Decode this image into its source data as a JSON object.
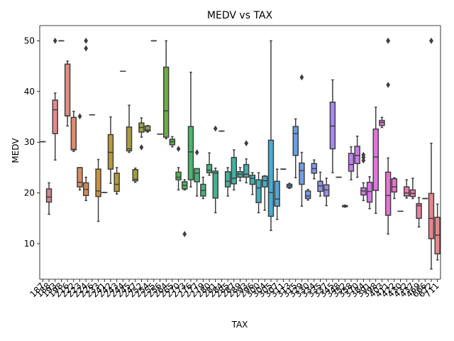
{
  "chart_data": {
    "type": "box",
    "title": "MEDV vs TAX",
    "xlabel": "TAX",
    "ylabel": "MEDV",
    "ylim": [
      3,
      53
    ],
    "y_ticks": [
      10,
      20,
      30,
      40,
      50
    ],
    "grid": false,
    "legend": "none",
    "box_edge_color": "#3f3f3f",
    "boxes": [
      {
        "tax": "187",
        "color": "#c98b8b",
        "q1": 30.1,
        "median": 30.1,
        "q3": 30.1,
        "whisker_low": 30.1,
        "whisker_high": 30.1,
        "fliers": []
      },
      {
        "tax": "188",
        "color": "#c8898f",
        "q1": 18.2,
        "median": 19.2,
        "q3": 20.8,
        "whisker_low": 15.8,
        "whisker_high": 22.0,
        "fliers": []
      },
      {
        "tax": "193",
        "color": "#e8878c",
        "q1": 31.7,
        "median": 36.4,
        "q3": 38.3,
        "whisker_low": 26.5,
        "whisker_high": 39.7,
        "fliers": [
          50.0
        ]
      },
      {
        "tax": "198",
        "color": "#de8a8a",
        "q1": 50.0,
        "median": 50.0,
        "q3": 50.0,
        "whisker_low": 50.0,
        "whisker_high": 50.0,
        "fliers": []
      },
      {
        "tax": "216",
        "color": "#e48a7f",
        "q1": 35.2,
        "median": 35.2,
        "q3": 45.4,
        "whisker_low": 33.2,
        "whisker_high": 46.0,
        "fliers": []
      },
      {
        "tax": "222",
        "color": "#e08a6e",
        "q1": 28.5,
        "median": 28.6,
        "q3": 34.9,
        "whisker_low": 28.2,
        "whisker_high": 36.1,
        "fliers": []
      },
      {
        "tax": "223",
        "color": "#dc8c5e",
        "q1": 21.2,
        "median": 22.1,
        "q3": 25.0,
        "whisker_low": 20.6,
        "whisker_high": 25.0,
        "fliers": [
          35.1
        ]
      },
      {
        "tax": "224",
        "color": "#d68c52",
        "q1": 19.5,
        "median": 20.7,
        "q3": 22.0,
        "whisker_low": 18.5,
        "whisker_high": 23.1,
        "fliers": [
          48.5,
          50.0
        ]
      },
      {
        "tax": "226",
        "color": "#cf8f4b",
        "q1": 35.4,
        "median": 35.4,
        "q3": 35.4,
        "whisker_low": 35.4,
        "whisker_high": 35.4,
        "fliers": []
      },
      {
        "tax": "233",
        "color": "#c89346",
        "q1": 19.3,
        "median": 20.4,
        "q3": 24.7,
        "whisker_low": 14.4,
        "whisker_high": 26.6,
        "fliers": []
      },
      {
        "tax": "241",
        "color": "#c39543",
        "q1": 20.1,
        "median": 20.1,
        "q3": 20.1,
        "whisker_low": 20.1,
        "whisker_high": 20.1,
        "fliers": []
      },
      {
        "tax": "242",
        "color": "#bb9740",
        "q1": 24.7,
        "median": 28.0,
        "q3": 31.5,
        "whisker_low": 21.9,
        "whisker_high": 35.0,
        "fliers": []
      },
      {
        "tax": "243",
        "color": "#b49a3f",
        "q1": 20.3,
        "median": 21.7,
        "q3": 23.9,
        "whisker_low": 19.8,
        "whisker_high": 25.0,
        "fliers": []
      },
      {
        "tax": "244",
        "color": "#ae9c3e",
        "q1": 44.0,
        "median": 44.0,
        "q3": 44.0,
        "whisker_low": 44.0,
        "whisker_high": 44.0,
        "fliers": []
      },
      {
        "tax": "245",
        "color": "#a89d3c",
        "q1": 28.3,
        "median": 28.7,
        "q3": 33.0,
        "whisker_low": 28.0,
        "whisker_high": 37.3,
        "fliers": []
      },
      {
        "tax": "247",
        "color": "#a29f3b",
        "q1": 22.4,
        "median": 22.7,
        "q3": 24.6,
        "whisker_low": 22.1,
        "whisker_high": 24.9,
        "fliers": []
      },
      {
        "tax": "252",
        "color": "#9ca23b",
        "q1": 32.0,
        "median": 32.9,
        "q3": 33.8,
        "whisker_low": 31.0,
        "whisker_high": 34.8,
        "fliers": [
          29.0
        ]
      },
      {
        "tax": "254",
        "color": "#93a53b",
        "q1": 32.2,
        "median": 32.4,
        "q3": 33.2,
        "whisker_low": 32.0,
        "whisker_high": 33.3,
        "fliers": []
      },
      {
        "tax": "255",
        "color": "#87a93b",
        "q1": 50.0,
        "median": 50.0,
        "q3": 50.0,
        "whisker_low": 50.0,
        "whisker_high": 50.0,
        "fliers": []
      },
      {
        "tax": "256",
        "color": "#7aad3c",
        "q1": 31.6,
        "median": 31.6,
        "q3": 31.6,
        "whisker_low": 31.6,
        "whisker_high": 31.6,
        "fliers": []
      },
      {
        "tax": "264",
        "color": "#6bb03f",
        "q1": 31.0,
        "median": 36.2,
        "q3": 44.8,
        "whisker_low": 30.7,
        "whisker_high": 50.0,
        "fliers": []
      },
      {
        "tax": "265",
        "color": "#5eb34a",
        "q1": 29.5,
        "median": 30.1,
        "q3": 30.6,
        "whisker_low": 29.1,
        "whisker_high": 31.1,
        "fliers": []
      },
      {
        "tax": "270",
        "color": "#55b556",
        "q1": 22.6,
        "median": 23.1,
        "q3": 24.1,
        "whisker_low": 20.6,
        "whisker_high": 25.0,
        "fliers": [
          28.7
        ]
      },
      {
        "tax": "273",
        "color": "#50b562",
        "q1": 20.8,
        "median": 21.5,
        "q3": 22.2,
        "whisker_low": 20.6,
        "whisker_high": 22.6,
        "fliers": [
          11.9
        ]
      },
      {
        "tax": "276",
        "color": "#4db56c",
        "q1": 22.6,
        "median": 28.1,
        "q3": 33.1,
        "whisker_low": 21.2,
        "whisker_high": 43.8,
        "fliers": []
      },
      {
        "tax": "277",
        "color": "#4ab475",
        "q1": 22.2,
        "median": 23.9,
        "q3": 24.8,
        "whisker_low": 19.4,
        "whisker_high": 24.8,
        "fliers": [
          28.0
        ]
      },
      {
        "tax": "279",
        "color": "#48b37d",
        "q1": 19.4,
        "median": 20.5,
        "q3": 21.7,
        "whisker_low": 18.9,
        "whisker_high": 23.1,
        "fliers": []
      },
      {
        "tax": "280",
        "color": "#46b385",
        "q1": 24.0,
        "median": 24.5,
        "q3": 25.6,
        "whisker_low": 23.5,
        "whisker_high": 27.9,
        "fliers": []
      },
      {
        "tax": "281",
        "color": "#45b28c",
        "q1": 19.0,
        "median": 23.9,
        "q3": 24.3,
        "whisker_low": 16.1,
        "whisker_high": 24.9,
        "fliers": [
          32.7
        ]
      },
      {
        "tax": "284",
        "color": "#44b293",
        "q1": 32.2,
        "median": 32.2,
        "q3": 32.2,
        "whisker_low": 32.2,
        "whisker_high": 32.2,
        "fliers": []
      },
      {
        "tax": "285",
        "color": "#43b299",
        "q1": 21.2,
        "median": 22.3,
        "q3": 24.2,
        "whisker_low": 19.4,
        "whisker_high": 25.0,
        "fliers": []
      },
      {
        "tax": "287",
        "color": "#42b1a0",
        "q1": 21.8,
        "median": 22.9,
        "q3": 27.0,
        "whisker_low": 20.6,
        "whisker_high": 28.5,
        "fliers": []
      },
      {
        "tax": "289",
        "color": "#42b0a6",
        "q1": 23.1,
        "median": 23.7,
        "q3": 24.2,
        "whisker_low": 22.4,
        "whisker_high": 25.0,
        "fliers": []
      },
      {
        "tax": "293",
        "color": "#41b0ad",
        "q1": 23.1,
        "median": 23.7,
        "q3": 25.6,
        "whisker_low": 22.0,
        "whisker_high": 26.7,
        "fliers": [
          29.8
        ]
      },
      {
        "tax": "296",
        "color": "#41afb4",
        "q1": 21.7,
        "median": 22.9,
        "q3": 23.5,
        "whisker_low": 19.7,
        "whisker_high": 24.0,
        "fliers": []
      },
      {
        "tax": "300",
        "color": "#42aebc",
        "q1": 18.1,
        "median": 21.0,
        "q3": 22.6,
        "whisker_low": 16.1,
        "whisker_high": 24.0,
        "fliers": []
      },
      {
        "tax": "304",
        "color": "#45acc5",
        "q1": 21.2,
        "median": 22.4,
        "q3": 23.3,
        "whisker_low": 16.6,
        "whisker_high": 23.4,
        "fliers": []
      },
      {
        "tax": "305",
        "color": "#4aabcf",
        "q1": 15.4,
        "median": 20.1,
        "q3": 30.4,
        "whisker_low": 12.6,
        "whisker_high": 50.0,
        "fliers": []
      },
      {
        "tax": "307",
        "color": "#50a9d7",
        "q1": 17.4,
        "median": 18.8,
        "q3": 22.3,
        "whisker_low": 14.8,
        "whisker_high": 24.7,
        "fliers": []
      },
      {
        "tax": "311",
        "color": "#56a7df",
        "q1": 24.7,
        "median": 24.7,
        "q3": 24.7,
        "whisker_low": 24.7,
        "whisker_high": 24.7,
        "fliers": []
      },
      {
        "tax": "313",
        "color": "#5ea4e5",
        "q1": 21.1,
        "median": 21.4,
        "q3": 21.7,
        "whisker_low": 20.9,
        "whisker_high": 21.9,
        "fliers": []
      },
      {
        "tax": "315",
        "color": "#66a1e9",
        "q1": 27.4,
        "median": 31.7,
        "q3": 33.1,
        "whisker_low": 23.0,
        "whisker_high": 34.6,
        "fliers": []
      },
      {
        "tax": "329",
        "color": "#6e9eec",
        "q1": 21.7,
        "median": 24.4,
        "q3": 25.9,
        "whisker_low": 17.4,
        "whisker_high": 28.0,
        "fliers": [
          42.8
        ]
      },
      {
        "tax": "330",
        "color": "#7a9aee",
        "q1": 18.9,
        "median": 19.4,
        "q3": 20.4,
        "whisker_low": 18.6,
        "whisker_high": 20.7,
        "fliers": []
      },
      {
        "tax": "334",
        "color": "#8596ef",
        "q1": 23.9,
        "median": 24.8,
        "q3": 25.8,
        "whisker_low": 22.8,
        "whisker_high": 26.5,
        "fliers": []
      },
      {
        "tax": "335",
        "color": "#9092ef",
        "q1": 20.3,
        "median": 21.4,
        "q3": 22.3,
        "whisker_low": 19.4,
        "whisker_high": 24.1,
        "fliers": []
      },
      {
        "tax": "337",
        "color": "#9b8eef",
        "q1": 19.4,
        "median": 20.6,
        "q3": 21.6,
        "whisker_low": 17.5,
        "whisker_high": 22.9,
        "fliers": []
      },
      {
        "tax": "345",
        "color": "#a68aef",
        "q1": 28.7,
        "median": 33.2,
        "q3": 37.9,
        "whisker_low": 24.0,
        "whisker_high": 42.3,
        "fliers": []
      },
      {
        "tax": "348",
        "color": "#b186ef",
        "q1": 23.1,
        "median": 23.1,
        "q3": 23.1,
        "whisker_low": 23.1,
        "whisker_high": 23.1,
        "fliers": []
      },
      {
        "tax": "352",
        "color": "#bc82ee",
        "q1": 17.3,
        "median": 17.4,
        "q3": 17.5,
        "whisker_low": 17.2,
        "whisker_high": 17.6,
        "fliers": []
      },
      {
        "tax": "358",
        "color": "#c57fed",
        "q1": 24.3,
        "median": 25.6,
        "q3": 27.8,
        "whisker_low": 22.6,
        "whisker_high": 29.1,
        "fliers": []
      },
      {
        "tax": "370",
        "color": "#cd7ceb",
        "q1": 25.8,
        "median": 27.4,
        "q3": 29.2,
        "whisker_low": 23.1,
        "whisker_high": 31.2,
        "fliers": []
      },
      {
        "tax": "384",
        "color": "#d47aea",
        "q1": 19.6,
        "median": 20.4,
        "q3": 21.0,
        "whisker_low": 18.5,
        "whisker_high": 22.0,
        "fliers": [
          26.4,
          27.0,
          27.5
        ]
      },
      {
        "tax": "391",
        "color": "#da77e7",
        "q1": 18.2,
        "median": 20.3,
        "q3": 22.1,
        "whisker_low": 16.9,
        "whisker_high": 23.2,
        "fliers": []
      },
      {
        "tax": "398",
        "color": "#e075e3",
        "q1": 20.5,
        "median": 27.1,
        "q3": 32.6,
        "whisker_low": 16.0,
        "whisker_high": 36.9,
        "fliers": []
      },
      {
        "tax": "403",
        "color": "#e474dc",
        "q1": 33.3,
        "median": 33.9,
        "q3": 34.3,
        "whisker_low": 32.9,
        "whisker_high": 34.9,
        "fliers": []
      },
      {
        "tax": "411",
        "color": "#e774d3",
        "q1": 15.6,
        "median": 19.5,
        "q3": 24.1,
        "whisker_low": 11.9,
        "whisker_high": 26.9,
        "fliers": [
          41.3,
          50.0,
          50.0
        ]
      },
      {
        "tax": "422",
        "color": "#e975c9",
        "q1": 20.2,
        "median": 21.2,
        "q3": 22.8,
        "whisker_low": 18.9,
        "whisker_high": 23.0,
        "fliers": []
      },
      {
        "tax": "430",
        "color": "#ea77bf",
        "q1": 16.4,
        "median": 16.4,
        "q3": 16.4,
        "whisker_low": 16.4,
        "whisker_high": 16.4,
        "fliers": []
      },
      {
        "tax": "432",
        "color": "#eb79b4",
        "q1": 19.4,
        "median": 20.0,
        "q3": 21.2,
        "whisker_low": 19.0,
        "whisker_high": 22.6,
        "fliers": []
      },
      {
        "tax": "437",
        "color": "#eb7caa",
        "q1": 19.3,
        "median": 19.9,
        "q3": 20.6,
        "whisker_low": 18.9,
        "whisker_high": 22.9,
        "fliers": []
      },
      {
        "tax": "469",
        "color": "#ea7ea0",
        "q1": 15.0,
        "median": 17.5,
        "q3": 17.9,
        "whisker_low": 13.3,
        "whisker_high": 19.1,
        "fliers": []
      },
      {
        "tax": "666",
        "color": "#e98196",
        "q1": 18.9,
        "median": 18.9,
        "q3": 18.9,
        "whisker_low": 18.9,
        "whisker_high": 18.9,
        "fliers": []
      },
      {
        "tax": "672",
        "color": "#e8848f",
        "q1": 11.0,
        "median": 15.0,
        "q3": 19.9,
        "whisker_low": 5.0,
        "whisker_high": 29.8,
        "fliers": [
          50.0,
          50.0
        ]
      },
      {
        "tax": "711",
        "color": "#e6868b",
        "q1": 8.0,
        "median": 11.7,
        "q3": 15.2,
        "whisker_low": 6.8,
        "whisker_high": 17.8,
        "fliers": []
      }
    ]
  }
}
